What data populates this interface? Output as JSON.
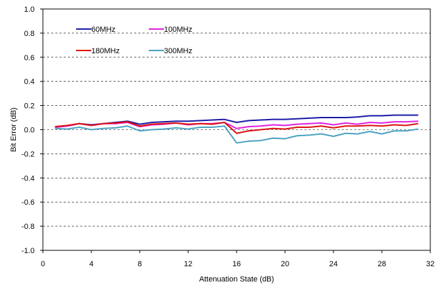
{
  "chart_data": {
    "type": "line",
    "xlabel": "Attenuation State (dB)",
    "ylabel": "Bit Error (dB)",
    "xlim": [
      0,
      32
    ],
    "ylim": [
      -1.0,
      1.0
    ],
    "x_ticks": [
      "0",
      "4",
      "8",
      "12",
      "16",
      "20",
      "24",
      "28",
      "32"
    ],
    "y_ticks": [
      "1.0",
      "0.8",
      "0.6",
      "0.4",
      "0.2",
      "0.0",
      "-0.2",
      "-0.4",
      "-0.6",
      "-0.8",
      "-1.0"
    ],
    "grid": "horizontal dashed",
    "legend_position": "top-left, inside",
    "x": [
      1,
      2,
      3,
      4,
      5,
      6,
      7,
      8,
      9,
      10,
      11,
      12,
      13,
      14,
      15,
      16,
      17,
      18,
      19,
      20,
      21,
      22,
      23,
      24,
      25,
      26,
      27,
      28,
      29,
      30,
      31
    ],
    "series": [
      {
        "name": "60MHz",
        "color": "#1a1aa6",
        "values": [
          0.02,
          0.03,
          0.05,
          0.04,
          0.05,
          0.06,
          0.07,
          0.045,
          0.06,
          0.065,
          0.07,
          0.07,
          0.075,
          0.08,
          0.085,
          0.06,
          0.075,
          0.08,
          0.085,
          0.085,
          0.09,
          0.095,
          0.1,
          0.1,
          0.1,
          0.105,
          0.115,
          0.115,
          0.12,
          0.12,
          0.12
        ]
      },
      {
        "name": "100MHz",
        "color": "#e020e0",
        "values": [
          0.02,
          0.03,
          0.05,
          0.035,
          0.05,
          0.05,
          0.06,
          0.025,
          0.04,
          0.045,
          0.055,
          0.04,
          0.05,
          0.05,
          0.06,
          0.01,
          0.025,
          0.03,
          0.04,
          0.035,
          0.045,
          0.05,
          0.055,
          0.04,
          0.055,
          0.045,
          0.06,
          0.055,
          0.065,
          0.065,
          0.07
        ]
      },
      {
        "name": "180MHz",
        "color": "#dd1111",
        "values": [
          0.025,
          0.035,
          0.05,
          0.035,
          0.05,
          0.055,
          0.065,
          0.03,
          0.045,
          0.05,
          0.055,
          0.045,
          0.05,
          0.045,
          0.06,
          -0.03,
          -0.01,
          0.0,
          0.01,
          0.005,
          0.02,
          0.02,
          0.03,
          0.015,
          0.03,
          0.03,
          0.035,
          0.03,
          0.04,
          0.035,
          0.05
        ]
      },
      {
        "name": "300MHz",
        "color": "#4ba3c3",
        "values": [
          0.01,
          0.005,
          0.02,
          0.0,
          0.01,
          0.015,
          0.03,
          -0.01,
          0.0,
          0.005,
          0.015,
          0.005,
          0.02,
          0.02,
          0.03,
          -0.11,
          -0.095,
          -0.09,
          -0.07,
          -0.075,
          -0.05,
          -0.045,
          -0.035,
          -0.055,
          -0.03,
          -0.035,
          -0.015,
          -0.035,
          -0.01,
          -0.01,
          0.005
        ]
      }
    ]
  }
}
